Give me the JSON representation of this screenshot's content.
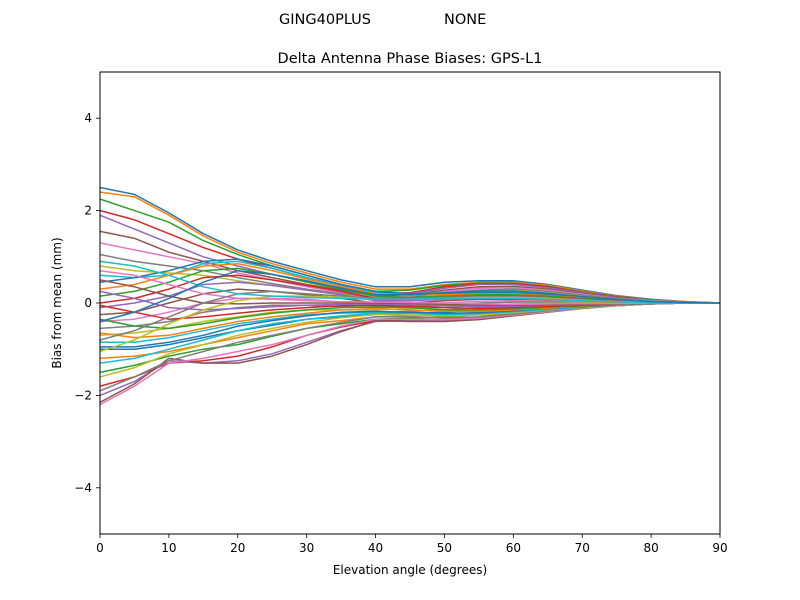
{
  "figure": {
    "suptitle_left": "GING40PLUS",
    "suptitle_right": "NONE"
  },
  "chart_data": {
    "type": "line",
    "title": "Delta Antenna Phase Biases: GPS-L1",
    "xlabel": "Elevation angle (degrees)",
    "ylabel": "Bias from mean (mm)",
    "xlim": [
      0,
      90
    ],
    "ylim": [
      -5,
      5
    ],
    "xticks": [
      "0",
      "10",
      "20",
      "30",
      "40",
      "50",
      "60",
      "70",
      "80",
      "90"
    ],
    "yticks": [
      "−4",
      "−2",
      "0",
      "2",
      "4"
    ],
    "grid": false,
    "legend": "none",
    "palette": [
      "#1f77b4",
      "#ff7f0e",
      "#2ca02c",
      "#d62728",
      "#9467bd",
      "#8c564b",
      "#e377c2",
      "#7f7f7f",
      "#bcbd22",
      "#17becf"
    ],
    "x": [
      0,
      5,
      10,
      15,
      20,
      25,
      30,
      35,
      40,
      45,
      50,
      55,
      60,
      65,
      70,
      75,
      80,
      85,
      90
    ],
    "series": [
      {
        "values": [
          2.5,
          2.35,
          1.95,
          1.5,
          1.15,
          0.9,
          0.7,
          0.5,
          0.35,
          0.35,
          0.45,
          0.48,
          0.48,
          0.4,
          0.28,
          0.16,
          0.08,
          0.03,
          0.0
        ]
      },
      {
        "values": [
          2.4,
          2.3,
          1.9,
          1.45,
          1.1,
          0.85,
          0.65,
          0.45,
          0.3,
          0.3,
          0.4,
          0.45,
          0.45,
          0.38,
          0.26,
          0.15,
          0.07,
          0.03,
          0.0
        ]
      },
      {
        "values": [
          2.25,
          2.0,
          1.75,
          1.35,
          1.05,
          0.8,
          0.6,
          0.4,
          0.25,
          0.28,
          0.38,
          0.43,
          0.43,
          0.36,
          0.24,
          0.14,
          0.07,
          0.02,
          0.0
        ]
      },
      {
        "values": [
          2.0,
          1.8,
          1.5,
          1.2,
          0.95,
          0.75,
          0.55,
          0.35,
          0.2,
          0.22,
          0.35,
          0.42,
          0.42,
          0.35,
          0.23,
          0.13,
          0.06,
          0.02,
          0.0
        ]
      },
      {
        "values": [
          1.9,
          1.6,
          1.3,
          1.0,
          0.8,
          0.62,
          0.48,
          0.32,
          0.18,
          0.2,
          0.32,
          0.4,
          0.4,
          0.33,
          0.22,
          0.12,
          0.06,
          0.02,
          0.0
        ]
      },
      {
        "values": [
          1.55,
          1.4,
          1.1,
          0.9,
          0.7,
          0.55,
          0.4,
          0.28,
          0.15,
          0.18,
          0.28,
          0.35,
          0.36,
          0.3,
          0.2,
          0.11,
          0.05,
          0.02,
          0.0
        ]
      },
      {
        "values": [
          1.3,
          1.15,
          1.0,
          0.85,
          0.65,
          0.5,
          0.35,
          0.22,
          0.12,
          0.15,
          0.25,
          0.32,
          0.33,
          0.28,
          0.19,
          0.1,
          0.05,
          0.02,
          0.0
        ]
      },
      {
        "values": [
          1.05,
          0.9,
          0.8,
          0.7,
          0.55,
          0.42,
          0.3,
          0.2,
          0.1,
          0.12,
          0.22,
          0.28,
          0.3,
          0.25,
          0.17,
          0.09,
          0.04,
          0.01,
          0.0
        ]
      },
      {
        "values": [
          0.8,
          0.7,
          0.65,
          0.6,
          0.48,
          0.38,
          0.28,
          0.18,
          0.08,
          0.1,
          0.18,
          0.25,
          0.27,
          0.22,
          0.15,
          0.08,
          0.04,
          0.01,
          0.0
        ]
      },
      {
        "values": [
          0.6,
          0.55,
          0.6,
          0.85,
          0.9,
          0.75,
          0.55,
          0.38,
          0.22,
          0.2,
          0.22,
          0.25,
          0.25,
          0.2,
          0.14,
          0.08,
          0.04,
          0.01,
          0.0
        ]
      },
      {
        "values": [
          0.45,
          0.55,
          0.7,
          0.9,
          0.95,
          0.8,
          0.6,
          0.4,
          0.25,
          0.2,
          0.2,
          0.22,
          0.22,
          0.18,
          0.12,
          0.07,
          0.03,
          0.01,
          0.0
        ]
      },
      {
        "values": [
          0.3,
          0.4,
          0.6,
          0.8,
          0.85,
          0.7,
          0.52,
          0.36,
          0.2,
          0.18,
          0.18,
          0.2,
          0.2,
          0.16,
          0.11,
          0.06,
          0.03,
          0.01,
          0.0
        ]
      },
      {
        "values": [
          0.15,
          0.25,
          0.45,
          0.7,
          0.75,
          0.62,
          0.45,
          0.3,
          0.15,
          0.12,
          0.15,
          0.18,
          0.18,
          0.15,
          0.1,
          0.06,
          0.03,
          0.01,
          0.0
        ]
      },
      {
        "values": [
          0.0,
          0.1,
          0.3,
          0.55,
          0.6,
          0.5,
          0.38,
          0.25,
          0.1,
          0.08,
          0.12,
          0.15,
          0.15,
          0.12,
          0.08,
          0.05,
          0.02,
          0.01,
          0.0
        ]
      },
      {
        "values": [
          -0.1,
          0.0,
          0.15,
          0.4,
          0.45,
          0.38,
          0.28,
          0.18,
          0.05,
          0.05,
          0.08,
          0.12,
          0.12,
          0.1,
          0.07,
          0.04,
          0.02,
          0.0,
          0.0
        ]
      },
      {
        "values": [
          -0.25,
          -0.2,
          0.0,
          0.2,
          0.3,
          0.25,
          0.18,
          0.1,
          0.0,
          0.0,
          0.05,
          0.08,
          0.08,
          0.07,
          0.05,
          0.03,
          0.01,
          0.0,
          0.0
        ]
      },
      {
        "values": [
          -0.4,
          -0.35,
          -0.2,
          0.0,
          0.1,
          0.1,
          0.08,
          0.02,
          -0.05,
          -0.05,
          0.0,
          0.04,
          0.05,
          0.04,
          0.03,
          0.02,
          0.01,
          0.0,
          0.0
        ]
      },
      {
        "values": [
          -0.55,
          -0.5,
          -0.4,
          -0.2,
          -0.1,
          -0.05,
          -0.05,
          -0.08,
          -0.1,
          -0.08,
          -0.05,
          0.0,
          0.02,
          0.02,
          0.01,
          0.01,
          0.0,
          0.0,
          0.0
        ]
      },
      {
        "values": [
          -0.7,
          -0.65,
          -0.55,
          -0.4,
          -0.3,
          -0.2,
          -0.15,
          -0.15,
          -0.15,
          -0.12,
          -0.1,
          -0.05,
          -0.02,
          -0.01,
          0.0,
          0.0,
          0.0,
          0.0,
          0.0
        ]
      },
      {
        "values": [
          -0.85,
          -0.85,
          -0.75,
          -0.6,
          -0.45,
          -0.35,
          -0.25,
          -0.22,
          -0.2,
          -0.18,
          -0.15,
          -0.1,
          -0.06,
          -0.04,
          -0.02,
          -0.01,
          0.0,
          0.0,
          0.0
        ]
      },
      {
        "values": [
          -1.0,
          -1.0,
          -0.9,
          -0.75,
          -0.6,
          -0.48,
          -0.35,
          -0.3,
          -0.25,
          -0.22,
          -0.2,
          -0.15,
          -0.1,
          -0.07,
          -0.04,
          -0.02,
          -0.01,
          0.0,
          0.0
        ]
      },
      {
        "values": [
          -1.2,
          -1.15,
          -1.05,
          -0.9,
          -0.75,
          -0.6,
          -0.45,
          -0.38,
          -0.3,
          -0.28,
          -0.25,
          -0.2,
          -0.15,
          -0.1,
          -0.06,
          -0.03,
          -0.01,
          0.0,
          0.0
        ]
      },
      {
        "values": [
          -1.5,
          -1.35,
          -1.15,
          -1.0,
          -0.9,
          -0.72,
          -0.55,
          -0.45,
          -0.35,
          -0.33,
          -0.3,
          -0.25,
          -0.18,
          -0.13,
          -0.08,
          -0.04,
          -0.02,
          0.0,
          0.0
        ]
      },
      {
        "values": [
          -1.8,
          -1.6,
          -1.3,
          -1.25,
          -1.15,
          -0.95,
          -0.7,
          -0.52,
          -0.38,
          -0.36,
          -0.35,
          -0.3,
          -0.22,
          -0.16,
          -0.1,
          -0.05,
          -0.02,
          0.0,
          0.0
        ]
      },
      {
        "values": [
          -2.0,
          -1.7,
          -1.25,
          -1.3,
          -1.25,
          -1.1,
          -0.85,
          -0.6,
          -0.4,
          -0.38,
          -0.38,
          -0.33,
          -0.25,
          -0.18,
          -0.11,
          -0.06,
          -0.02,
          0.0,
          0.0
        ]
      },
      {
        "values": [
          -2.15,
          -1.75,
          -1.2,
          -1.3,
          -1.3,
          -1.15,
          -0.9,
          -0.62,
          -0.38,
          -0.4,
          -0.4,
          -0.36,
          -0.28,
          -0.2,
          -0.12,
          -0.06,
          -0.02,
          0.0,
          0.0
        ]
      },
      {
        "values": [
          -2.2,
          -1.8,
          -1.3,
          -1.2,
          -1.05,
          -0.9,
          -0.7,
          -0.5,
          -0.35,
          -0.35,
          -0.36,
          -0.33,
          -0.26,
          -0.19,
          -0.12,
          -0.06,
          -0.02,
          0.0,
          0.0
        ]
      },
      {
        "values": [
          -1.9,
          -1.6,
          -1.25,
          -1.05,
          -0.85,
          -0.7,
          -0.55,
          -0.42,
          -0.3,
          -0.3,
          -0.32,
          -0.3,
          -0.24,
          -0.17,
          -0.11,
          -0.05,
          -0.02,
          0.0,
          0.0
        ]
      },
      {
        "values": [
          -1.6,
          -1.4,
          -1.1,
          -0.9,
          -0.7,
          -0.55,
          -0.42,
          -0.32,
          -0.25,
          -0.26,
          -0.28,
          -0.26,
          -0.21,
          -0.15,
          -0.1,
          -0.05,
          -0.02,
          0.0,
          0.0
        ]
      },
      {
        "values": [
          -1.3,
          -1.2,
          -1.0,
          -0.8,
          -0.6,
          -0.45,
          -0.35,
          -0.28,
          -0.22,
          -0.22,
          -0.25,
          -0.23,
          -0.19,
          -0.14,
          -0.09,
          -0.04,
          -0.02,
          0.0,
          0.0
        ]
      },
      {
        "values": [
          -0.95,
          -0.95,
          -0.85,
          -0.7,
          -0.5,
          -0.38,
          -0.28,
          -0.2,
          -0.18,
          -0.2,
          -0.22,
          -0.21,
          -0.17,
          -0.12,
          -0.08,
          -0.04,
          -0.01,
          0.0,
          0.0
        ]
      },
      {
        "values": [
          -0.65,
          -0.75,
          -0.7,
          -0.55,
          -0.4,
          -0.3,
          -0.22,
          -0.15,
          -0.12,
          -0.15,
          -0.18,
          -0.18,
          -0.15,
          -0.11,
          -0.07,
          -0.03,
          -0.01,
          0.0,
          0.0
        ]
      },
      {
        "values": [
          -0.35,
          -0.5,
          -0.55,
          -0.45,
          -0.32,
          -0.22,
          -0.15,
          -0.1,
          -0.08,
          -0.1,
          -0.15,
          -0.15,
          -0.13,
          -0.09,
          -0.06,
          -0.03,
          -0.01,
          0.0,
          0.0
        ]
      },
      {
        "values": [
          -0.05,
          -0.2,
          -0.35,
          -0.3,
          -0.22,
          -0.15,
          -0.1,
          -0.06,
          -0.05,
          -0.07,
          -0.1,
          -0.12,
          -0.1,
          -0.07,
          -0.05,
          -0.02,
          -0.01,
          0.0,
          0.0
        ]
      },
      {
        "values": [
          0.25,
          0.1,
          -0.1,
          -0.15,
          -0.12,
          -0.08,
          -0.05,
          -0.03,
          -0.02,
          -0.04,
          -0.06,
          -0.08,
          -0.07,
          -0.05,
          -0.03,
          -0.02,
          -0.01,
          0.0,
          0.0
        ]
      },
      {
        "values": [
          0.5,
          0.35,
          0.15,
          0.0,
          -0.02,
          0.0,
          0.0,
          0.0,
          0.0,
          -0.01,
          -0.03,
          -0.05,
          -0.05,
          -0.04,
          -0.02,
          -0.01,
          0.0,
          0.0,
          0.0
        ]
      },
      {
        "values": [
          0.7,
          0.6,
          0.4,
          0.2,
          0.1,
          0.08,
          0.05,
          0.03,
          0.02,
          0.01,
          0.0,
          -0.02,
          -0.03,
          -0.02,
          -0.01,
          -0.01,
          0.0,
          0.0,
          0.0
        ]
      },
      {
        "values": [
          -0.8,
          -0.6,
          -0.3,
          0.0,
          0.2,
          0.25,
          0.2,
          0.15,
          0.1,
          0.1,
          0.12,
          0.14,
          0.14,
          0.11,
          0.07,
          0.04,
          0.02,
          0.0,
          0.0
        ]
      },
      {
        "values": [
          -1.05,
          -0.8,
          -0.45,
          -0.15,
          0.05,
          0.15,
          0.15,
          0.12,
          0.08,
          0.08,
          0.1,
          0.12,
          0.12,
          0.1,
          0.06,
          0.03,
          0.01,
          0.0,
          0.0
        ]
      },
      {
        "values": [
          0.9,
          0.8,
          0.6,
          0.35,
          0.2,
          0.15,
          0.12,
          0.1,
          0.08,
          0.08,
          0.1,
          0.1,
          0.1,
          0.08,
          0.05,
          0.03,
          0.01,
          0.0,
          0.0
        ]
      },
      {
        "values": [
          -0.4,
          -0.2,
          0.1,
          0.45,
          0.7,
          0.62,
          0.48,
          0.32,
          0.18,
          0.18,
          0.22,
          0.26,
          0.26,
          0.21,
          0.14,
          0.08,
          0.03,
          0.01,
          0.0
        ]
      }
    ]
  }
}
